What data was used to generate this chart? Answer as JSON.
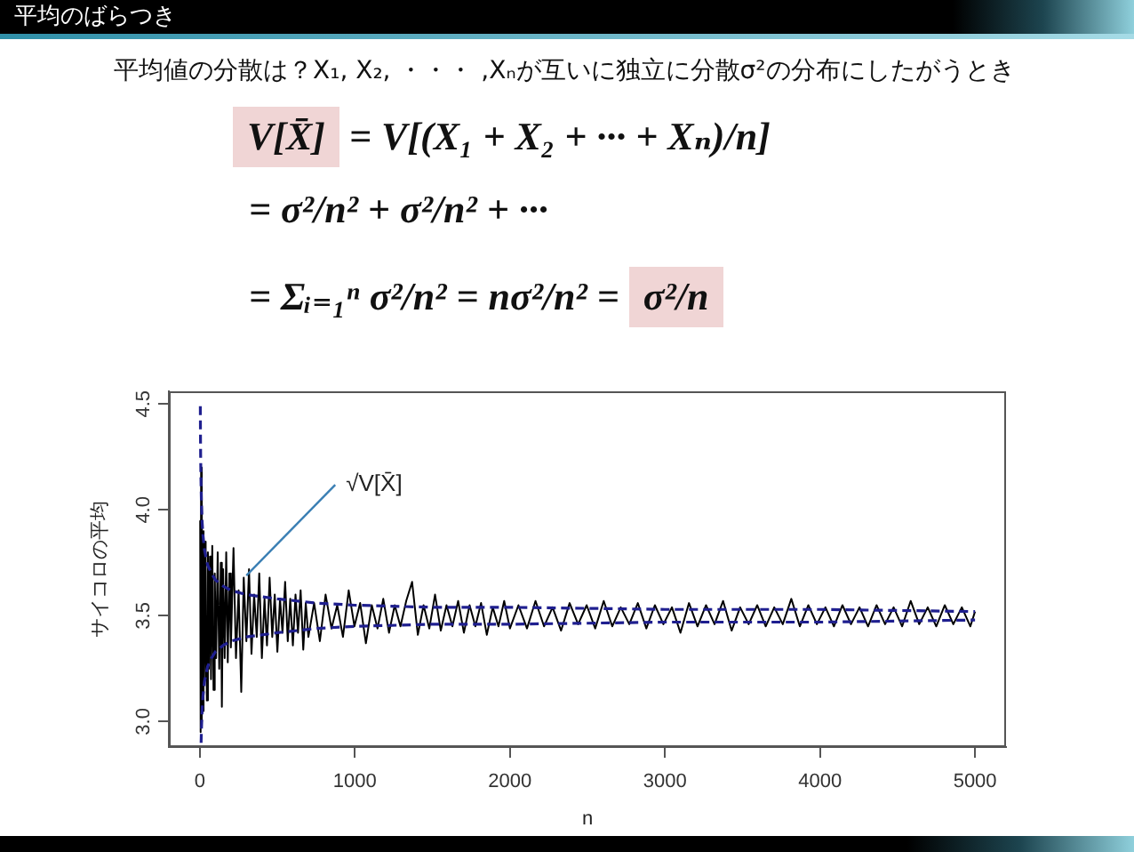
{
  "chart_data": {
    "type": "line",
    "title": "平均のばらつき",
    "subtitle": "平均値の分散は？X₁, X₂, ・・・ ,Xₙが互いに独立に分散σ²の分布にしたがうとき",
    "xlabel": "n",
    "ylabel": "サイコロの平均",
    "annotations": [
      "V[X̄] = V[(X₁ + X₂ + ··· + Xₙ)/n]",
      "= σ²/n² + σ²/n² + ···",
      "= Σᵢ₌₁ⁿ σ²/n² = nσ²/n² = σ²/n",
      {
        "text": "√V[X̄]",
        "x": 300,
        "y": 3.69
      }
    ],
    "series": [
      {
        "color": "#1f1f8f",
        "line_style": "dashed",
        "x": [
          3,
          4,
          5,
          7,
          10,
          15,
          20,
          30,
          50,
          75,
          100,
          150,
          200,
          300,
          500,
          750,
          1000,
          1500,
          2000,
          3000,
          4000,
          5000
        ],
        "values": [
          4.49,
          4.35,
          4.26,
          4.15,
          4.04,
          3.94,
          3.88,
          3.81,
          3.74,
          3.7,
          3.67,
          3.64,
          3.62,
          3.6,
          3.58,
          3.56,
          3.55,
          3.54,
          3.54,
          3.53,
          3.53,
          3.52
        ]
      },
      {
        "color": "#1f1f8f",
        "line_style": "dashed",
        "x": [
          8,
          10,
          15,
          20,
          30,
          50,
          75,
          100,
          150,
          200,
          300,
          500,
          750,
          1000,
          1500,
          2000,
          3000,
          4000,
          5000
        ],
        "values": [
          2.9,
          2.96,
          3.06,
          3.12,
          3.19,
          3.26,
          3.3,
          3.33,
          3.36,
          3.38,
          3.4,
          3.42,
          3.44,
          3.45,
          3.46,
          3.46,
          3.47,
          3.47,
          3.48
        ]
      },
      {
        "color": "#000000",
        "x": [
          2,
          5,
          8,
          11,
          14,
          18,
          22,
          26,
          30,
          35,
          40,
          45,
          52,
          58,
          65,
          72,
          80,
          88,
          96,
          105,
          115,
          125,
          135,
          142,
          150,
          160,
          170,
          180,
          190,
          200,
          217,
          233,
          250,
          267,
          283,
          300,
          317,
          333,
          350,
          367,
          383,
          400,
          417,
          433,
          450,
          467,
          483,
          500,
          517,
          533,
          550,
          567,
          583,
          600,
          617,
          633,
          650,
          667,
          683,
          700,
          737,
          774,
          811,
          849,
          886,
          923,
          960,
          997,
          1034,
          1071,
          1109,
          1146,
          1183,
          1220,
          1257,
          1294,
          1331,
          1369,
          1406,
          1443,
          1480,
          1517,
          1554,
          1591,
          1629,
          1666,
          1703,
          1740,
          1777,
          1814,
          1851,
          1889,
          1926,
          1963,
          2000,
          2055,
          2110,
          2165,
          2220,
          2275,
          2330,
          2385,
          2440,
          2495,
          2550,
          2605,
          2660,
          2715,
          2770,
          2825,
          2880,
          2935,
          2990,
          3045,
          3100,
          3155,
          3210,
          3265,
          3320,
          3375,
          3430,
          3485,
          3540,
          3595,
          3650,
          3705,
          3760,
          3815,
          3870,
          3925,
          3980,
          4035,
          4090,
          4145,
          4200,
          4255,
          4310,
          4365,
          4420,
          4475,
          4530,
          4585,
          4640,
          4695,
          4750,
          4805,
          4860,
          4915,
          4970,
          5000
        ],
        "values": [
          3.95,
          2.95,
          4.2,
          3.0,
          4.05,
          3.05,
          3.9,
          3.15,
          3.85,
          3.2,
          3.75,
          3.1,
          3.8,
          3.25,
          3.78,
          3.2,
          3.83,
          3.15,
          3.7,
          3.3,
          3.8,
          3.25,
          3.75,
          3.07,
          3.72,
          3.3,
          3.8,
          3.28,
          3.7,
          3.35,
          3.82,
          3.3,
          3.62,
          3.14,
          3.68,
          3.38,
          3.72,
          3.32,
          3.6,
          3.4,
          3.7,
          3.3,
          3.58,
          3.36,
          3.68,
          3.4,
          3.6,
          3.33,
          3.58,
          3.42,
          3.66,
          3.38,
          3.58,
          3.36,
          3.6,
          3.42,
          3.62,
          3.34,
          3.56,
          3.4,
          3.56,
          3.38,
          3.6,
          3.44,
          3.55,
          3.4,
          3.62,
          3.45,
          3.56,
          3.37,
          3.55,
          3.44,
          3.58,
          3.42,
          3.55,
          3.45,
          3.57,
          3.66,
          3.41,
          3.55,
          3.44,
          3.6,
          3.43,
          3.55,
          3.45,
          3.57,
          3.42,
          3.55,
          3.45,
          3.56,
          3.41,
          3.54,
          3.45,
          3.57,
          3.44,
          3.55,
          3.44,
          3.57,
          3.45,
          3.54,
          3.43,
          3.56,
          3.46,
          3.55,
          3.44,
          3.57,
          3.45,
          3.54,
          3.46,
          3.56,
          3.44,
          3.55,
          3.46,
          3.54,
          3.42,
          3.56,
          3.45,
          3.55,
          3.46,
          3.57,
          3.43,
          3.54,
          3.46,
          3.55,
          3.45,
          3.54,
          3.46,
          3.58,
          3.45,
          3.55,
          3.46,
          3.54,
          3.45,
          3.55,
          3.46,
          3.54,
          3.45,
          3.55,
          3.46,
          3.54,
          3.45,
          3.57,
          3.46,
          3.54,
          3.45,
          3.55,
          3.46,
          3.54,
          3.45,
          3.52
        ]
      }
    ],
    "xlim": [
      -200,
      5200
    ],
    "xticks": [
      0,
      1000,
      2000,
      3000,
      4000,
      5000
    ],
    "ylim": [
      2.88,
      4.56
    ],
    "yticks": [
      {
        "value": 3,
        "label": "3.0"
      },
      3.5,
      {
        "value": 4,
        "label": "4.0"
      },
      4.5
    ]
  }
}
